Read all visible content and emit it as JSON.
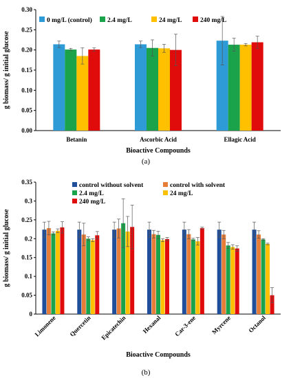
{
  "chart_data": [
    {
      "type": "bar",
      "panel": "(a)",
      "xlabel": "Bioactive Compounds",
      "ylabel": "g biomass/ g initial glucose",
      "ylim": [
        0,
        0.3
      ],
      "yticks": [
        "0.00",
        "0.05",
        "0.10",
        "0.15",
        "0.20",
        "0.25",
        "0.30"
      ],
      "categories": [
        "Betanin",
        "Ascorbic Acid",
        "Ellagic Acid"
      ],
      "legend_position": "top-left",
      "series": [
        {
          "name": "0 mg/L (control)",
          "color": "#2e9bd6",
          "values": [
            0.214,
            0.214,
            0.223
          ],
          "errors": [
            0.008,
            0.008,
            0.06
          ]
        },
        {
          "name": "2.4 mg/L",
          "color": "#1aa34a",
          "values": [
            0.201,
            0.205,
            0.213
          ],
          "errors": [
            0.003,
            0.02,
            0.016
          ]
        },
        {
          "name": "24 mg/L",
          "color": "#ffc000",
          "values": [
            0.185,
            0.204,
            0.213
          ],
          "errors": [
            0.02,
            0.01,
            0.003
          ]
        },
        {
          "name": "240 mg/L",
          "color": "#e00b0b",
          "values": [
            0.201,
            0.2,
            0.219
          ],
          "errors": [
            0.004,
            0.039,
            0.015
          ]
        }
      ]
    },
    {
      "type": "bar",
      "panel": "(b)",
      "xlabel": "Bioactive Compounds",
      "ylabel": "g biomass/ g initial glucose",
      "ylim": [
        0,
        0.35
      ],
      "yticks": [
        "0",
        "0.05",
        "0.1",
        "0.15",
        "0.2",
        "0.25",
        "0.3",
        "0.35"
      ],
      "categories": [
        "Limonene",
        "Quercetin",
        "Epicatechin",
        "Hexanal",
        "Car-3-ene",
        "Myrcene",
        "Octanol"
      ],
      "legend_position": "top",
      "series": [
        {
          "name": "control without solvent",
          "color": "#1f4e9a",
          "values": [
            0.224,
            0.224,
            0.224,
            0.224,
            0.224,
            0.224,
            0.224
          ],
          "errors": [
            0.02,
            0.02,
            0.02,
            0.02,
            0.02,
            0.02,
            0.02
          ]
        },
        {
          "name": "control with solvent",
          "color": "#e67e3a",
          "values": [
            0.228,
            0.211,
            0.227,
            0.212,
            0.212,
            0.211,
            0.211
          ],
          "errors": [
            0.018,
            0.03,
            0.025,
            0.01,
            0.012,
            0.011,
            0.01
          ]
        },
        {
          "name": "2.4 mg/L",
          "color": "#1aa34a",
          "values": [
            0.214,
            0.2,
            0.241,
            0.21,
            0.198,
            0.182,
            0.198
          ],
          "errors": [
            0.004,
            0.005,
            0.065,
            0.01,
            0.003,
            0.008,
            0.002
          ]
        },
        {
          "name": "24 mg/L",
          "color": "#ffc000",
          "values": [
            0.221,
            0.196,
            0.219,
            0.196,
            0.193,
            0.178,
            0.186
          ],
          "errors": [
            0.005,
            0.004,
            0.04,
            0.004,
            0.01,
            0.006,
            0.002
          ]
        },
        {
          "name": "240 mg/L",
          "color": "#e00b0b",
          "values": [
            0.23,
            0.209,
            0.231,
            0.199,
            0.228,
            0.174,
            0.05
          ],
          "errors": [
            0.015,
            0.01,
            0.058,
            0.004,
            0.003,
            0.007,
            0.02
          ]
        }
      ]
    }
  ],
  "captions": [
    "(a)",
    "(b)"
  ]
}
